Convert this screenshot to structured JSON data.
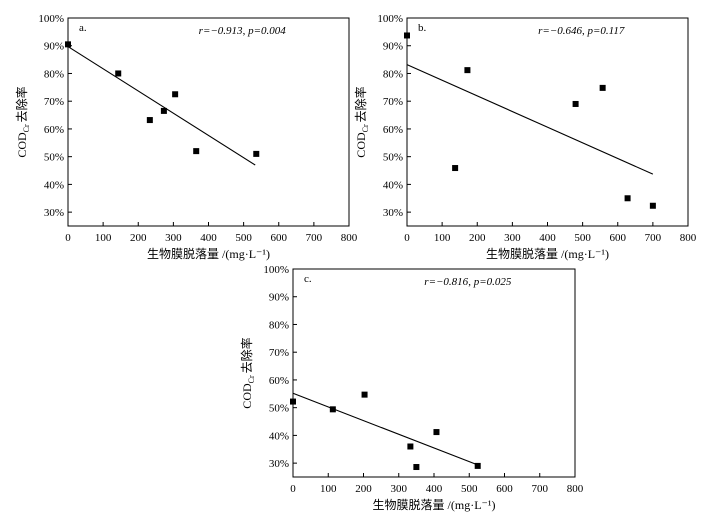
{
  "chart_data": [
    {
      "type": "scatter",
      "panel_label": "a.",
      "annotation": {
        "r": "r=−0.913",
        "sep": ", ",
        "p": "p=0.004"
      },
      "xlabel": "生物膜脱落量 /(mg·L⁻¹)",
      "ylabel": "COD去除率",
      "ylabel_sub": "Cr",
      "xlim": [
        0,
        800
      ],
      "ylim": [
        25,
        100
      ],
      "xticks": [
        0,
        100,
        200,
        300,
        400,
        500,
        600,
        700,
        800
      ],
      "yticks": [
        30,
        40,
        50,
        60,
        70,
        80,
        90,
        100
      ],
      "ytick_labels": [
        "30%",
        "40%",
        "50%",
        "60%",
        "70%",
        "80%",
        "90%",
        "100%"
      ],
      "points": [
        {
          "x": 0,
          "y": 90.5
        },
        {
          "x": 143,
          "y": 80
        },
        {
          "x": 233,
          "y": 63.2
        },
        {
          "x": 273,
          "y": 66.5
        },
        {
          "x": 305,
          "y": 72.5
        },
        {
          "x": 365,
          "y": 52
        },
        {
          "x": 536,
          "y": 51
        }
      ],
      "fit_line": {
        "x": [
          0,
          533
        ],
        "y": [
          89.7,
          47
        ]
      }
    },
    {
      "type": "scatter",
      "panel_label": "b.",
      "annotation": {
        "r": "r=−0.646",
        "sep": ", ",
        "p": "p=0.117"
      },
      "xlabel": "生物膜脱落量 /(mg·L⁻¹)",
      "ylabel": "COD去除率",
      "ylabel_sub": "Cr",
      "xlim": [
        0,
        800
      ],
      "ylim": [
        25,
        100
      ],
      "xticks": [
        0,
        100,
        200,
        300,
        400,
        500,
        600,
        700,
        800
      ],
      "yticks": [
        30,
        40,
        50,
        60,
        70,
        80,
        90,
        100
      ],
      "ytick_labels": [
        "30%",
        "40%",
        "50%",
        "60%",
        "70%",
        "80%",
        "90%",
        "100%"
      ],
      "points": [
        {
          "x": 0,
          "y": 93.7
        },
        {
          "x": 137,
          "y": 45.9
        },
        {
          "x": 172,
          "y": 81.2
        },
        {
          "x": 480,
          "y": 69
        },
        {
          "x": 557,
          "y": 74.8
        },
        {
          "x": 628,
          "y": 35
        },
        {
          "x": 700,
          "y": 32.3
        }
      ],
      "fit_line": {
        "x": [
          0,
          700
        ],
        "y": [
          83.2,
          43.7
        ]
      }
    },
    {
      "type": "scatter",
      "panel_label": "c.",
      "annotation": {
        "r": "r=−0.816",
        "sep": ", ",
        "p": "p=0.025"
      },
      "xlabel": "生物膜脱落量 /(mg·L⁻¹)",
      "ylabel": "COD去除率",
      "ylabel_sub": "Cr",
      "xlim": [
        0,
        800
      ],
      "ylim": [
        25,
        100
      ],
      "xticks": [
        0,
        100,
        200,
        300,
        400,
        500,
        600,
        700,
        800
      ],
      "yticks": [
        30,
        40,
        50,
        60,
        70,
        80,
        90,
        100
      ],
      "ytick_labels": [
        "30%",
        "40%",
        "50%",
        "60%",
        "70%",
        "80%",
        "90%",
        "100%"
      ],
      "points": [
        {
          "x": 0,
          "y": 52.2
        },
        {
          "x": 113,
          "y": 49.4
        },
        {
          "x": 203,
          "y": 54.7
        },
        {
          "x": 333,
          "y": 36
        },
        {
          "x": 350,
          "y": 28.6
        },
        {
          "x": 407,
          "y": 41.2
        },
        {
          "x": 524,
          "y": 29
        }
      ],
      "fit_line": {
        "x": [
          0,
          521
        ],
        "y": [
          55.2,
          29.5
        ]
      }
    }
  ]
}
